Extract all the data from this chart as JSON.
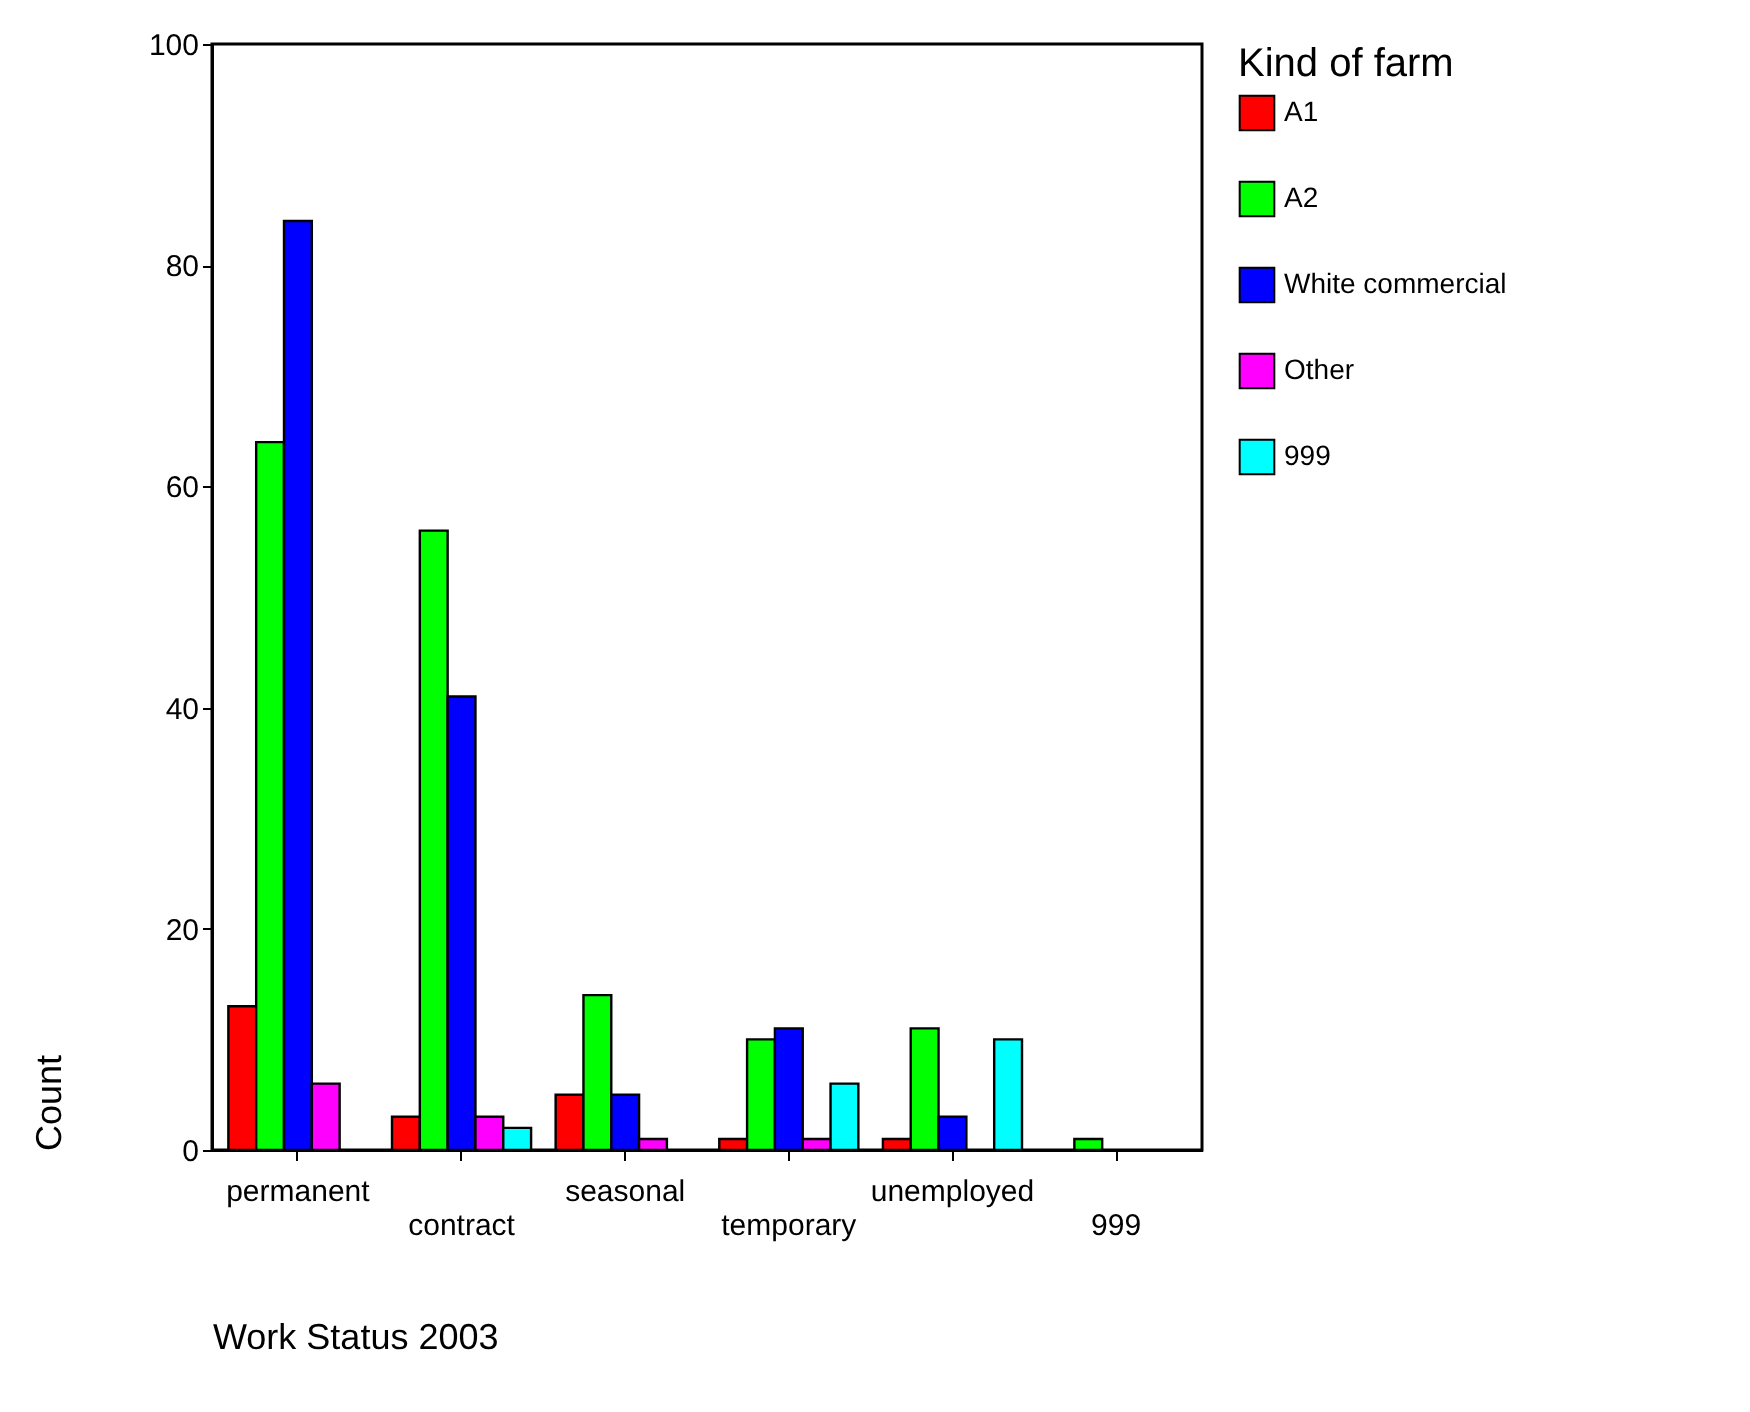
{
  "chart_data": {
    "type": "bar",
    "xlabel": "Work Status 2003",
    "ylabel": "Count",
    "legend_title": "Kind of farm",
    "legend": "right",
    "grid": false,
    "categories": [
      "permanent",
      "contract",
      "seasonal",
      "temporary",
      "unemployed",
      "999"
    ],
    "ylim": [
      0,
      100
    ],
    "yticks": [
      0,
      20,
      40,
      60,
      80,
      100
    ],
    "series": [
      {
        "name": "A1",
        "color": "#ff0000",
        "values": [
          13,
          3,
          5,
          1,
          1,
          null
        ]
      },
      {
        "name": "A2",
        "color": "#00ff00",
        "values": [
          64,
          56,
          14,
          10,
          11,
          1
        ]
      },
      {
        "name": "White commercial",
        "color": "#0000ff",
        "values": [
          84,
          41,
          5,
          11,
          3,
          null
        ]
      },
      {
        "name": "Other",
        "color": "#ff00ff",
        "values": [
          6,
          3,
          1,
          1,
          null,
          null
        ]
      },
      {
        "name": "999",
        "color": "#00ffff",
        "values": [
          null,
          2,
          null,
          6,
          10,
          null
        ]
      }
    ]
  }
}
